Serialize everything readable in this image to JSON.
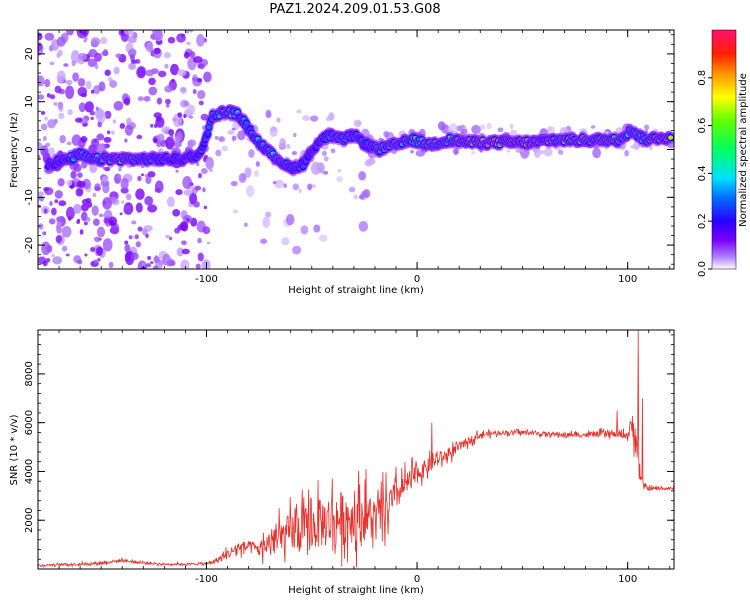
{
  "title": "PAZ1.2024.209.01.53.G08",
  "chart_data": [
    {
      "type": "heatmap",
      "xlabel": "Height of straight line (km)",
      "ylabel": "Frequency (Hz)",
      "xlim": [
        -180,
        122
      ],
      "ylim": [
        -25,
        25
      ],
      "xticks": [
        -100,
        0,
        100
      ],
      "yticks": [
        -20,
        -10,
        0,
        10,
        20
      ],
      "colorbar": {
        "label": "Normalized spectral amplitude",
        "range": [
          0,
          1
        ],
        "ticks": [
          0.0,
          0.2,
          0.4,
          0.6,
          0.8
        ]
      },
      "ridge": [
        {
          "x": -175,
          "y": -3,
          "amp": 0.3
        },
        {
          "x": -165,
          "y": -2,
          "amp": 0.35
        },
        {
          "x": -160,
          "y": -1,
          "amp": 0.4
        },
        {
          "x": -155,
          "y": -2,
          "amp": 0.4
        },
        {
          "x": -148,
          "y": -2,
          "amp": 0.55
        },
        {
          "x": -140,
          "y": -2,
          "amp": 0.8
        },
        {
          "x": -132,
          "y": -2,
          "amp": 0.35
        },
        {
          "x": -122,
          "y": -2,
          "amp": 0.3
        },
        {
          "x": -112,
          "y": -2,
          "amp": 0.3
        },
        {
          "x": -103,
          "y": -1,
          "amp": 0.3
        },
        {
          "x": -97,
          "y": 7,
          "amp": 0.4
        },
        {
          "x": -90,
          "y": 8,
          "amp": 0.6
        },
        {
          "x": -84,
          "y": 7,
          "amp": 0.4
        },
        {
          "x": -78,
          "y": 3,
          "amp": 0.35
        },
        {
          "x": -72,
          "y": 0,
          "amp": 0.4
        },
        {
          "x": -66,
          "y": -2,
          "amp": 0.45
        },
        {
          "x": -60,
          "y": -4,
          "amp": 0.35
        },
        {
          "x": -54,
          "y": -3,
          "amp": 0.3
        },
        {
          "x": -48,
          "y": 1,
          "amp": 0.3
        },
        {
          "x": -42,
          "y": 3,
          "amp": 0.4
        },
        {
          "x": -36,
          "y": 2,
          "amp": 0.45
        },
        {
          "x": -30,
          "y": 3,
          "amp": 0.35
        },
        {
          "x": -24,
          "y": 1,
          "amp": 0.3
        },
        {
          "x": -18,
          "y": 0,
          "amp": 0.45
        },
        {
          "x": -10,
          "y": 1,
          "amp": 0.6
        },
        {
          "x": -2,
          "y": 2,
          "amp": 0.55
        },
        {
          "x": 6,
          "y": 1,
          "amp": 0.6
        },
        {
          "x": 15,
          "y": 2,
          "amp": 0.6
        },
        {
          "x": 25,
          "y": 1.5,
          "amp": 0.8
        },
        {
          "x": 35,
          "y": 1.5,
          "amp": 0.85
        },
        {
          "x": 45,
          "y": 1.5,
          "amp": 0.9
        },
        {
          "x": 55,
          "y": 1.5,
          "amp": 0.85
        },
        {
          "x": 65,
          "y": 2,
          "amp": 0.7
        },
        {
          "x": 75,
          "y": 2,
          "amp": 0.7
        },
        {
          "x": 85,
          "y": 2,
          "amp": 0.75
        },
        {
          "x": 95,
          "y": 2,
          "amp": 0.7
        },
        {
          "x": 102,
          "y": 4,
          "amp": 0.5
        },
        {
          "x": 108,
          "y": 2,
          "amp": 0.55
        },
        {
          "x": 115,
          "y": 2.5,
          "amp": 0.8
        },
        {
          "x": 121,
          "y": 2.5,
          "amp": 0.8
        }
      ]
    },
    {
      "type": "line",
      "xlabel": "Height of straight line (km)",
      "ylabel": "SNR (10 * v/v)",
      "xlim": [
        -180,
        122
      ],
      "ylim": [
        0,
        9800
      ],
      "xticks": [
        -100,
        0,
        100
      ],
      "yticks": [
        2000,
        4000,
        6000,
        8000
      ],
      "series": [
        {
          "color": "#e8302a",
          "x": [
            -180,
            -170,
            -160,
            -150,
            -140,
            -130,
            -120,
            -110,
            -100,
            -95,
            -90,
            -85,
            -80,
            -75,
            -70,
            -65,
            -60,
            -55,
            -50,
            -45,
            -40,
            -35,
            -30,
            -25,
            -20,
            -15,
            -10,
            -5,
            0,
            5,
            10,
            15,
            20,
            25,
            30,
            40,
            50,
            60,
            70,
            80,
            90,
            95,
            100,
            103,
            105,
            107,
            110,
            115,
            122
          ],
          "y": [
            150,
            180,
            200,
            250,
            350,
            250,
            200,
            200,
            220,
            350,
            600,
            900,
            900,
            800,
            1100,
            1300,
            1500,
            1600,
            1700,
            1900,
            2000,
            2100,
            2100,
            2200,
            2000,
            2400,
            3000,
            3500,
            3900,
            4200,
            4500,
            4700,
            5000,
            5300,
            5500,
            5600,
            5600,
            5550,
            5500,
            5500,
            5550,
            5500,
            5500,
            6000,
            4500,
            3400,
            3300,
            3300,
            3300
          ],
          "amp": [
            50,
            50,
            60,
            70,
            80,
            60,
            50,
            50,
            60,
            150,
            250,
            300,
            300,
            400,
            600,
            800,
            1000,
            1100,
            1200,
            1300,
            1400,
            1400,
            1300,
            1300,
            1200,
            1000,
            800,
            600,
            500,
            400,
            350,
            300,
            250,
            200,
            150,
            120,
            100,
            100,
            120,
            130,
            150,
            150,
            200,
            900,
            1000,
            200,
            100,
            80,
            80
          ],
          "peaks": [
            {
              "x": 105,
              "y": 9800
            },
            {
              "x": 107,
              "y": 7000
            },
            {
              "x": 95,
              "y": 6500
            },
            {
              "x": 7,
              "y": 6000
            }
          ]
        }
      ]
    }
  ]
}
